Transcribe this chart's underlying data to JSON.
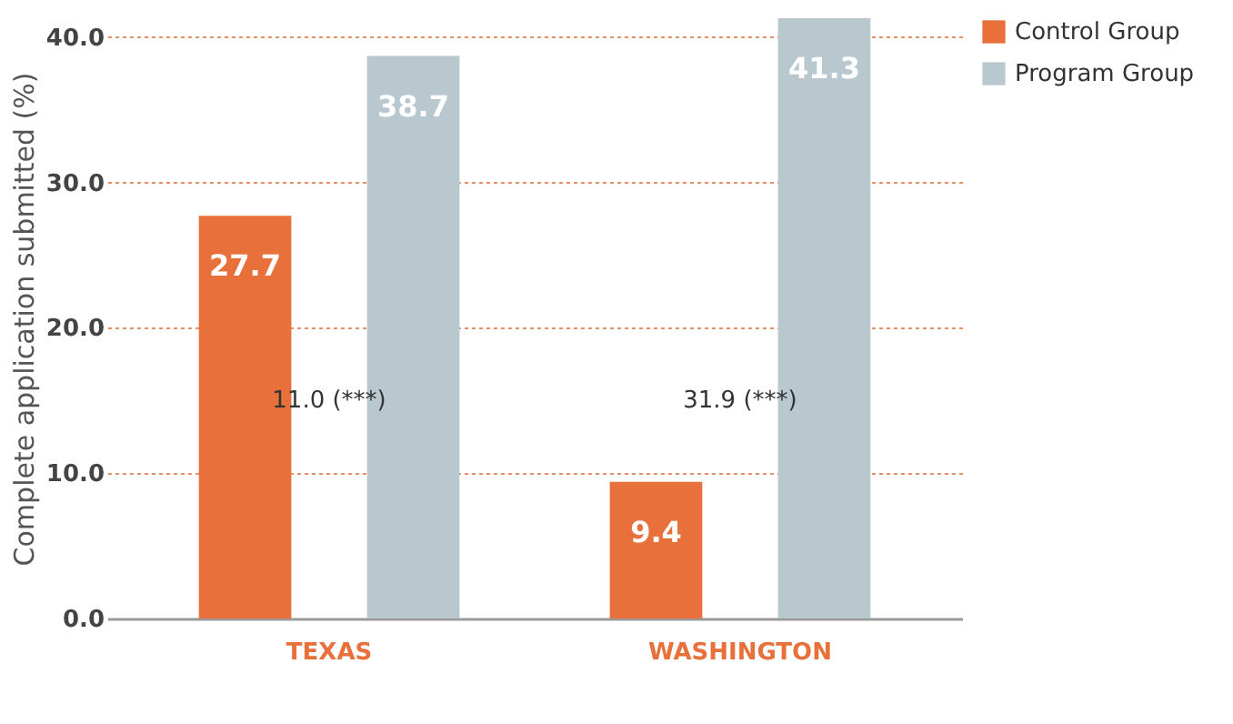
{
  "chart_data": {
    "type": "bar",
    "ylabel": "Complete application submitted (%)",
    "categories": [
      "TEXAS",
      "WASHINGTON"
    ],
    "series": [
      {
        "name": "Control Group",
        "color": "#e8703a",
        "values": [
          27.7,
          9.4
        ]
      },
      {
        "name": "Program Group",
        "color": "#b9c7cf",
        "values": [
          38.7,
          41.3
        ]
      }
    ],
    "ylim": [
      0,
      41.3
    ],
    "yticks": [
      {
        "value": 0,
        "label": "0.0"
      },
      {
        "value": 10,
        "label": "10.0"
      },
      {
        "value": 20,
        "label": "20.0"
      },
      {
        "value": 30,
        "label": "30.0"
      },
      {
        "value": 40,
        "label": "40.0"
      }
    ],
    "grid": "y",
    "legend": "top right",
    "data_labels": true,
    "annotations": [
      "11.0 (***)",
      "31.9 (***)"
    ]
  }
}
